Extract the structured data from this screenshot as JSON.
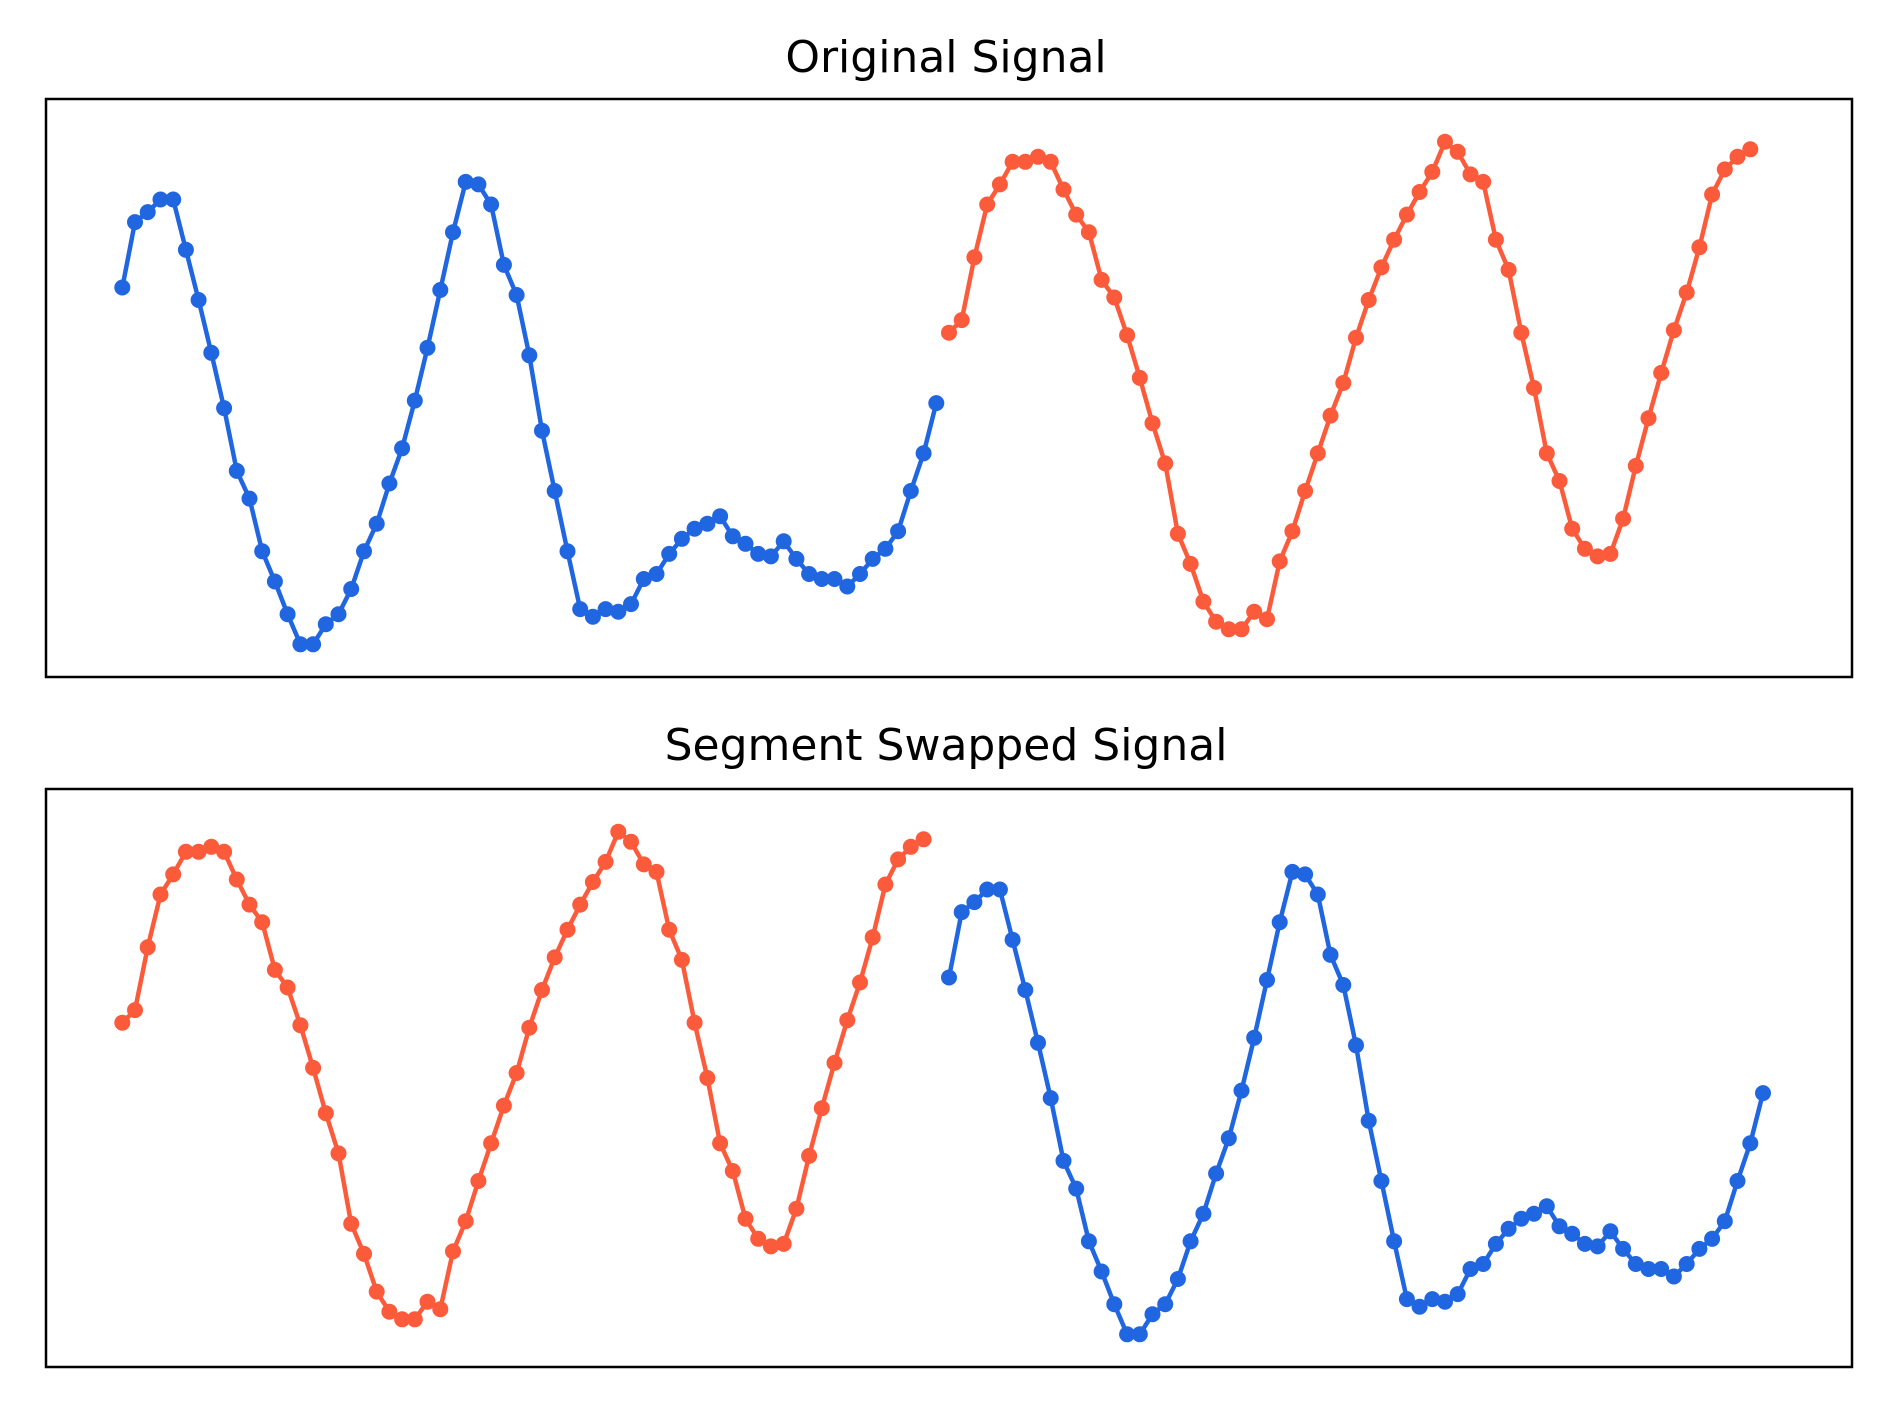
{
  "chart_data": [
    {
      "type": "line",
      "title": "Original Signal",
      "xlabel": "",
      "ylabel": "",
      "xlim": [
        -6,
        136
      ],
      "ylim": [
        -1.15,
        1.15
      ],
      "grid": false,
      "axes_ticks": false,
      "segments": [
        {
          "color": "#1f66e0",
          "x_start": 0,
          "values": [
            0.4,
            0.66,
            0.7,
            0.75,
            0.75,
            0.55,
            0.35,
            0.14,
            -0.08,
            -0.33,
            -0.44,
            -0.65,
            -0.77,
            -0.9,
            -1.02,
            -1.02,
            -0.94,
            -0.9,
            -0.8,
            -0.65,
            -0.54,
            -0.38,
            -0.24,
            -0.05,
            0.16,
            0.39,
            0.62,
            0.82,
            0.81,
            0.73,
            0.49,
            0.37,
            0.13,
            -0.17,
            -0.41,
            -0.65,
            -0.88,
            -0.91,
            -0.88,
            -0.89,
            -0.86,
            -0.76,
            -0.74,
            -0.66,
            -0.6,
            -0.56,
            -0.54,
            -0.51,
            -0.59,
            -0.62,
            -0.66,
            -0.67,
            -0.61,
            -0.68,
            -0.74,
            -0.76,
            -0.76,
            -0.79,
            -0.74,
            -0.68,
            -0.64,
            -0.57,
            -0.41,
            -0.26,
            -0.06
          ]
        },
        {
          "color": "#fb5b3b",
          "x_start": 65,
          "values": [
            0.22,
            0.27,
            0.52,
            0.73,
            0.81,
            0.9,
            0.9,
            0.92,
            0.9,
            0.79,
            0.69,
            0.62,
            0.43,
            0.36,
            0.21,
            0.04,
            -0.14,
            -0.3,
            -0.58,
            -0.7,
            -0.85,
            -0.93,
            -0.96,
            -0.96,
            -0.89,
            -0.92,
            -0.69,
            -0.57,
            -0.41,
            -0.26,
            -0.11,
            0.02,
            0.2,
            0.35,
            0.48,
            0.59,
            0.69,
            0.78,
            0.86,
            0.98,
            0.94,
            0.85,
            0.82,
            0.59,
            0.47,
            0.22,
            0.0,
            -0.26,
            -0.37,
            -0.56,
            -0.64,
            -0.67,
            -0.66,
            -0.52,
            -0.31,
            -0.12,
            0.06,
            0.23,
            0.38,
            0.56,
            0.77,
            0.87,
            0.92,
            0.95
          ]
        }
      ]
    },
    {
      "type": "line",
      "title": "Segment Swapped Signal",
      "xlabel": "",
      "ylabel": "",
      "xlim": [
        -6,
        136
      ],
      "ylim": [
        -1.15,
        1.15
      ],
      "grid": false,
      "axes_ticks": false,
      "segments": [
        {
          "color": "#fb5b3b",
          "x_start": 0,
          "values": [
            0.22,
            0.27,
            0.52,
            0.73,
            0.81,
            0.9,
            0.9,
            0.92,
            0.9,
            0.79,
            0.69,
            0.62,
            0.43,
            0.36,
            0.21,
            0.04,
            -0.14,
            -0.3,
            -0.58,
            -0.7,
            -0.85,
            -0.93,
            -0.96,
            -0.96,
            -0.89,
            -0.92,
            -0.69,
            -0.57,
            -0.41,
            -0.26,
            -0.11,
            0.02,
            0.2,
            0.35,
            0.48,
            0.59,
            0.69,
            0.78,
            0.86,
            0.98,
            0.94,
            0.85,
            0.82,
            0.59,
            0.47,
            0.22,
            0.0,
            -0.26,
            -0.37,
            -0.56,
            -0.64,
            -0.67,
            -0.66,
            -0.52,
            -0.31,
            -0.12,
            0.06,
            0.23,
            0.38,
            0.56,
            0.77,
            0.87,
            0.92,
            0.95
          ]
        },
        {
          "color": "#1f66e0",
          "x_start": 65,
          "values": [
            0.4,
            0.66,
            0.7,
            0.75,
            0.75,
            0.55,
            0.35,
            0.14,
            -0.08,
            -0.33,
            -0.44,
            -0.65,
            -0.77,
            -0.9,
            -1.02,
            -1.02,
            -0.94,
            -0.9,
            -0.8,
            -0.65,
            -0.54,
            -0.38,
            -0.24,
            -0.05,
            0.16,
            0.39,
            0.62,
            0.82,
            0.81,
            0.73,
            0.49,
            0.37,
            0.13,
            -0.17,
            -0.41,
            -0.65,
            -0.88,
            -0.91,
            -0.88,
            -0.89,
            -0.86,
            -0.76,
            -0.74,
            -0.66,
            -0.6,
            -0.56,
            -0.54,
            -0.51,
            -0.59,
            -0.62,
            -0.66,
            -0.67,
            -0.61,
            -0.68,
            -0.74,
            -0.76,
            -0.76,
            -0.79,
            -0.74,
            -0.68,
            -0.64,
            -0.57,
            -0.41,
            -0.26,
            -0.06
          ]
        }
      ]
    }
  ]
}
